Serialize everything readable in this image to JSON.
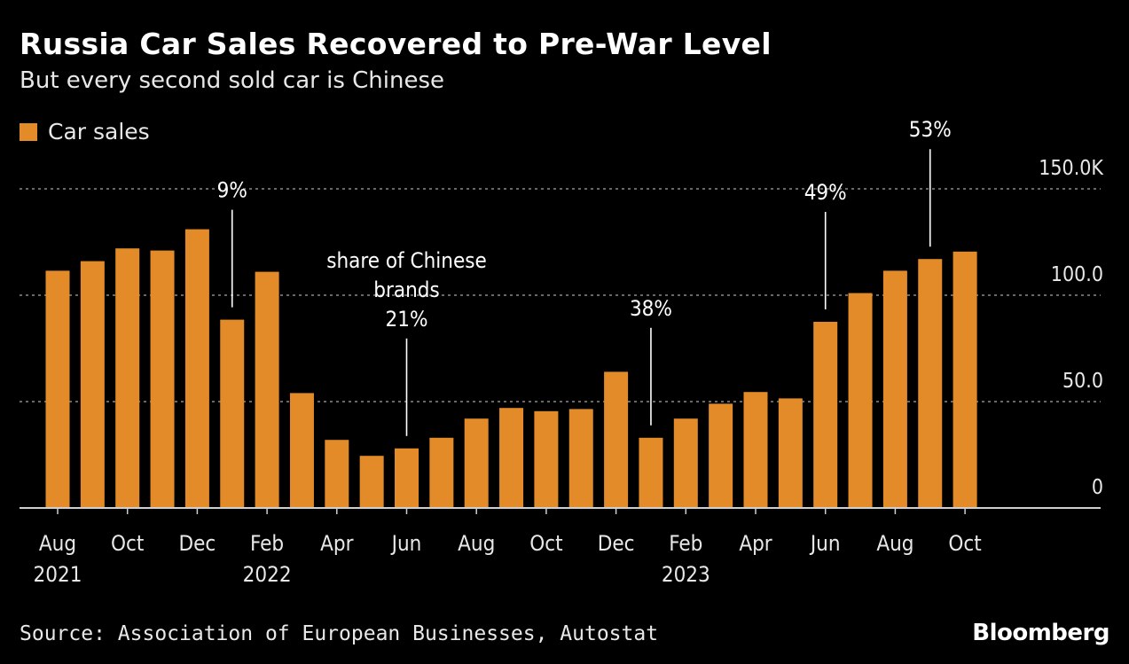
{
  "header": {
    "title": "Russia Car Sales Recovered to Pre-War Level",
    "subtitle": "But every second sold car is Chinese"
  },
  "legend": {
    "label": "Car sales"
  },
  "footer": {
    "source": "Source: Association of European Businesses, Autostat",
    "brand": "Bloomberg"
  },
  "colors": {
    "bar": "#E28B28",
    "background": "#000000",
    "gridline": "#8a8a8a",
    "text": "#ffffff"
  },
  "chart_data": {
    "type": "bar",
    "legend": "Car sales",
    "categories": [
      "2021-08",
      "2021-09",
      "2021-10",
      "2021-11",
      "2021-12",
      "2022-01",
      "2022-02",
      "2022-03",
      "2022-04",
      "2022-05",
      "2022-06",
      "2022-07",
      "2022-08",
      "2022-09",
      "2022-10",
      "2022-11",
      "2022-12",
      "2023-01",
      "2023-02",
      "2023-03",
      "2023-04",
      "2023-05",
      "2023-06",
      "2023-07",
      "2023-08",
      "2023-09",
      "2023-10"
    ],
    "series": [
      {
        "name": "Car sales",
        "values": [
          111.5,
          116,
          122,
          121,
          131,
          88.5,
          111,
          54,
          32,
          24.5,
          28,
          33,
          42,
          47,
          45.5,
          46.5,
          64,
          33,
          42,
          49,
          54.5,
          51.5,
          87.5,
          101,
          111.5,
          117,
          120.5
        ]
      }
    ],
    "y_axis": {
      "ylim": [
        0,
        150
      ],
      "ticks": [
        {
          "value": 0,
          "label": "0"
        },
        {
          "value": 50,
          "label": "50.0"
        },
        {
          "value": 100,
          "label": "100.0"
        },
        {
          "value": 150,
          "label": "150.0K"
        }
      ],
      "side": "right",
      "grid": true
    },
    "x_axis": {
      "tick_labels": [
        {
          "category": "2021-08",
          "month": "Aug",
          "year": "2021"
        },
        {
          "category": "2021-10",
          "month": "Oct",
          "year": ""
        },
        {
          "category": "2021-12",
          "month": "Dec",
          "year": ""
        },
        {
          "category": "2022-02",
          "month": "Feb",
          "year": "2022"
        },
        {
          "category": "2022-04",
          "month": "Apr",
          "year": ""
        },
        {
          "category": "2022-06",
          "month": "Jun",
          "year": ""
        },
        {
          "category": "2022-08",
          "month": "Aug",
          "year": ""
        },
        {
          "category": "2022-10",
          "month": "Oct",
          "year": ""
        },
        {
          "category": "2022-12",
          "month": "Dec",
          "year": ""
        },
        {
          "category": "2023-02",
          "month": "Feb",
          "year": "2023"
        },
        {
          "category": "2023-04",
          "month": "Apr",
          "year": ""
        },
        {
          "category": "2023-06",
          "month": "Jun",
          "year": ""
        },
        {
          "category": "2023-08",
          "month": "Aug",
          "year": ""
        },
        {
          "category": "2023-10",
          "month": "Oct",
          "year": ""
        }
      ]
    },
    "annotations": [
      {
        "category": "2022-01",
        "lines": [
          "9%"
        ]
      },
      {
        "category": "2022-06",
        "lines": [
          "share of Chinese",
          "brands",
          "21%"
        ]
      },
      {
        "category": "2023-01",
        "lines": [
          "38%"
        ]
      },
      {
        "category": "2023-06",
        "lines": [
          "49%"
        ]
      },
      {
        "category": "2023-09",
        "lines": [
          "53%"
        ]
      }
    ]
  }
}
